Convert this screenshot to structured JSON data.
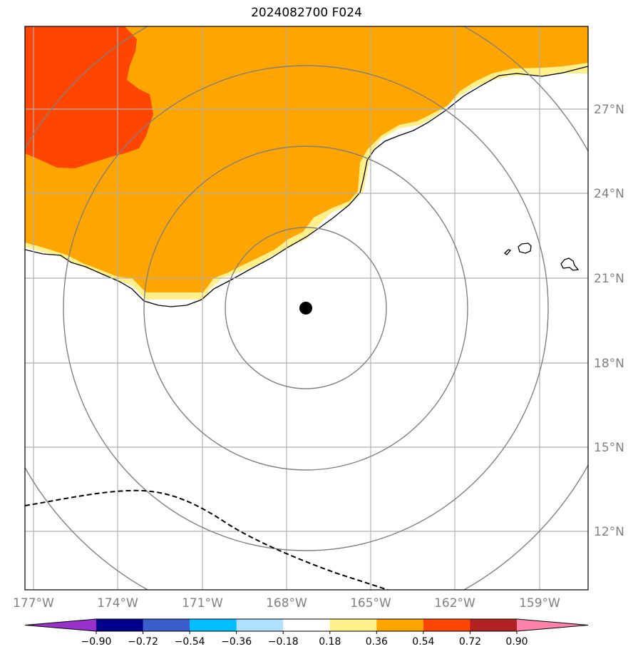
{
  "title": "2024082700 F024",
  "map": {
    "lon_labels": [
      "177°W",
      "174°W",
      "171°W",
      "168°W",
      "165°W",
      "162°W",
      "159°W"
    ],
    "lat_labels": [
      "27°N",
      "24°N",
      "21°N",
      "18°N",
      "15°N",
      "12°N"
    ],
    "center_marker": "storm-center",
    "range_rings": 4,
    "grid": true,
    "colors": {
      "grid": "#b0b0b0",
      "rings": "#808080",
      "contour": "#000000",
      "track": "#000000"
    }
  },
  "colorbar": {
    "tick_labels": [
      "−0.90",
      "−0.72",
      "−0.54",
      "−0.36",
      "−0.18",
      "0.18",
      "0.36",
      "0.54",
      "0.72",
      "0.90"
    ],
    "colors": [
      "#9932cc",
      "#00008b",
      "#3a5fcd",
      "#00bfff",
      "#b0e2ff",
      "#ffffff",
      "#fff08c",
      "#ffa500",
      "#ff4500",
      "#b22222",
      "#ff82ab"
    ]
  }
}
